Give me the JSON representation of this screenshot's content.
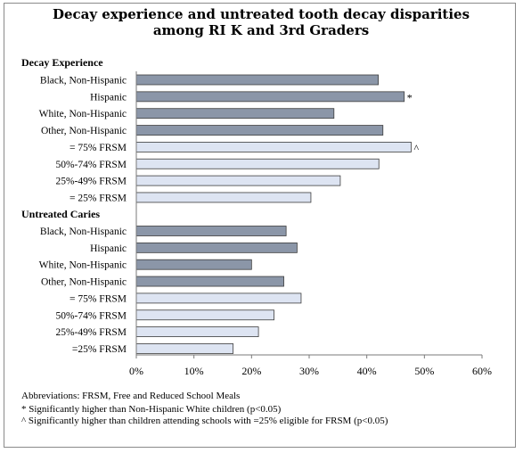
{
  "chart_data": {
    "type": "bar",
    "orientation": "horizontal",
    "title": [
      "Decay experience and untreated tooth decay disparities",
      "among RI K and 3rd Graders"
    ],
    "xlim": [
      0,
      60
    ],
    "x_ticks": [
      "0%",
      "10%",
      "20%",
      "30%",
      "40%",
      "50%",
      "60%"
    ],
    "grid": false,
    "groups": [
      {
        "name": "Decay Experience",
        "categories": [
          "Black, Non-Hispanic",
          "Hispanic",
          "White, Non-Hispanic",
          "Other, Non-Hispanic",
          "= 75% FRSM",
          "50%-74% FRSM",
          "25%-49% FRSM",
          "= 25% FRSM"
        ],
        "values": [
          42,
          46.5,
          34.3,
          42.8,
          47.7,
          42.1,
          35.4,
          30.3
        ],
        "markers": [
          "",
          "*",
          "",
          "",
          "^",
          "",
          "",
          ""
        ]
      },
      {
        "name": "Untreated Caries",
        "categories": [
          "Black, Non-Hispanic",
          "Hispanic",
          "White, Non-Hispanic",
          "Other, Non-Hispanic",
          "= 75% FRSM",
          "50%-74% FRSM",
          "25%-49% FRSM",
          "=25% FRSM"
        ],
        "values": [
          26,
          27.9,
          20,
          25.6,
          28.6,
          23.9,
          21.2,
          16.8
        ],
        "markers": [
          "",
          "",
          "",
          "",
          "",
          "",
          "",
          ""
        ]
      }
    ],
    "colors": {
      "race": "#8b96a8",
      "frsm": "#dde4f2",
      "outline": "#3d3d3d"
    },
    "notes": [
      "Abbreviations: FRSM, Free and Reduced School Meals",
      "* Significantly higher than Non-Hispanic White children (p<0.05)",
      "^ Significantly higher than children attending schools with =25% eligible for FRSM (p<0.05)"
    ]
  }
}
